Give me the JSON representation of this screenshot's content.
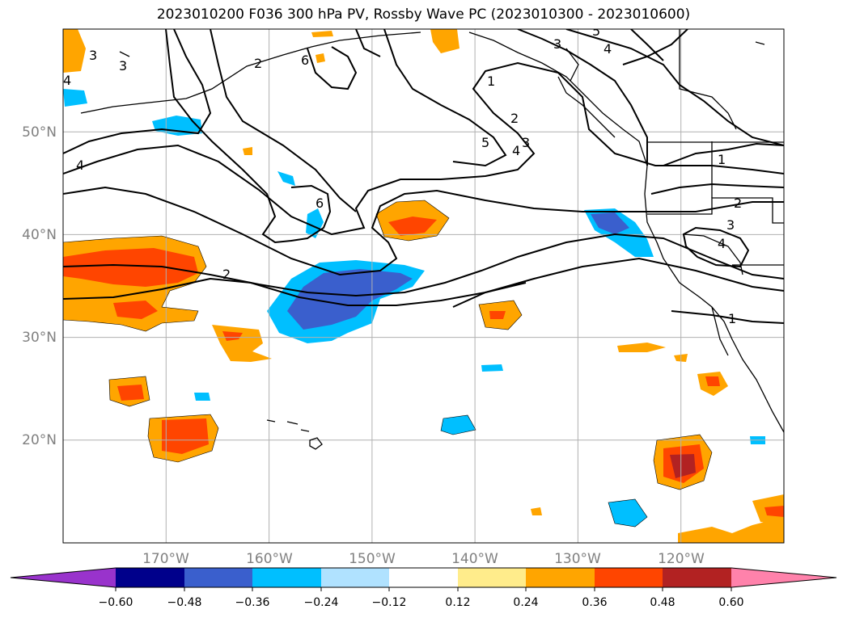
{
  "title": "2023010200 F036 300 hPa PV, Rossby Wave PC (2023010300 - 2023010600)",
  "map": {
    "projection": "cylindrical",
    "lon_range": [
      -180,
      -110
    ],
    "lat_range": [
      10,
      60
    ],
    "lat_labels": [
      "50°N",
      "40°N",
      "30°N",
      "20°N"
    ],
    "lon_labels": [
      "170°W",
      "160°W",
      "150°W",
      "140°W",
      "130°W",
      "120°W"
    ],
    "contour_labels": [
      "3",
      "3",
      "2",
      "6",
      "4",
      "4",
      "6",
      "2",
      "1",
      "2",
      "3",
      "5",
      "4",
      "3",
      "5",
      "4",
      "1",
      "2",
      "3",
      "4",
      "1"
    ],
    "axis_label_color": "#808080"
  },
  "colorbar": {
    "ticks": [
      "−0.60",
      "−0.48",
      "−0.36",
      "−0.24",
      "−0.12",
      "0.12",
      "0.24",
      "0.36",
      "0.48",
      "0.60"
    ],
    "colors": [
      "#9933cc",
      "#00008b",
      "#3a5fcd",
      "#00bfff",
      "#b0e2ff",
      "#ffffff",
      "#ffec8b",
      "#ffa500",
      "#ff4500",
      "#b22222",
      "#ff82ab"
    ]
  }
}
